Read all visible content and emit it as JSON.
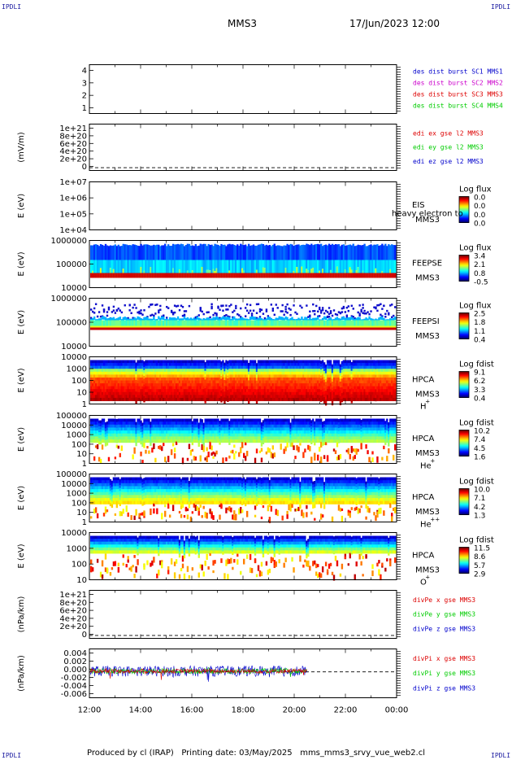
{
  "header": {
    "corner_tl": "IPDLI",
    "corner_tr": "IPDLI",
    "corner_bl": "IPDLI",
    "corner_br": "IPDLI",
    "spacecraft": "MMS3",
    "datetime": "17/Jun/2023 12:00"
  },
  "footer": {
    "produced": "Produced by cl (IRAP)",
    "printing_date": "Printing date: 03/May/2025",
    "script": "mms_mms3_srvy_vue_web2.cl"
  },
  "colors": {
    "blue": "#0000cc",
    "magenta": "#cc00cc",
    "red": "#dd0000",
    "green": "#00cc00"
  },
  "chart_data": [
    {
      "type": "line",
      "panel": "des-dist",
      "ylabel": "",
      "yticks": [
        "4",
        "3",
        "2",
        "1"
      ],
      "legend": [
        {
          "text": "des dist burst SC1 MMS1",
          "color": "#0000cc"
        },
        {
          "text": "des dist burst SC2 MMS2",
          "color": "#cc00cc"
        },
        {
          "text": "des dist burst SC3 MMS3",
          "color": "#dd0000"
        },
        {
          "text": "des dist burst SC4 MMS4",
          "color": "#00cc00"
        }
      ],
      "series": []
    },
    {
      "type": "line",
      "panel": "edi-e",
      "ylabel": "(mV/m)",
      "yticks": [
        "1e+21",
        "8e+20",
        "6e+20",
        "4e+20",
        "2e+20",
        "0"
      ],
      "legend": [
        {
          "text": "edi ex gse l2 MMS3",
          "color": "#dd0000"
        },
        {
          "text": "edi ey gse l2 MMS3",
          "color": "#00cc00"
        },
        {
          "text": "edi ez gse l2 MMS3",
          "color": "#0000cc"
        }
      ],
      "series": []
    },
    {
      "type": "heatmap",
      "panel": "eis",
      "ylabel": "E (eV)",
      "yticks": [
        "1e+07",
        "1e+06",
        "1e+05",
        "1e+04"
      ],
      "instrument": "EIS",
      "note": "heavy electron to",
      "sc": "MMS3",
      "cbar_title": "Log flux",
      "cbar_ticks": [
        "0.0",
        "0.0",
        "0.0",
        "0.0"
      ]
    },
    {
      "type": "heatmap",
      "panel": "feepse",
      "ylabel": "E (eV)",
      "yticks": [
        "1000000",
        "100000",
        "10000"
      ],
      "instrument": "FEEPSE",
      "sc": "MMS3",
      "cbar_title": "Log flux",
      "cbar_ticks": [
        "3.4",
        "2.1",
        "0.8",
        "-0.5"
      ]
    },
    {
      "type": "heatmap",
      "panel": "feepsi",
      "ylabel": "E (eV)",
      "yticks": [
        "1000000",
        "100000",
        "10000"
      ],
      "instrument": "FEEPSI",
      "sc": "MMS3",
      "cbar_title": "Log flux",
      "cbar_ticks": [
        "2.5",
        "1.8",
        "1.1",
        "0.4"
      ]
    },
    {
      "type": "heatmap",
      "panel": "hpca-h",
      "ylabel": "E (eV)",
      "yticks": [
        "10000",
        "1000",
        "100",
        "10",
        "1"
      ],
      "instrument": "HPCA",
      "sc": "MMS3",
      "species": "H",
      "charge": "+",
      "cbar_title": "Log fdist",
      "cbar_ticks": [
        "9.1",
        "6.2",
        "3.3",
        "0.4"
      ]
    },
    {
      "type": "heatmap",
      "panel": "hpca-he",
      "ylabel": "E (eV)",
      "yticks": [
        "100000",
        "10000",
        "1000",
        "100",
        "10",
        "1"
      ],
      "instrument": "HPCA",
      "sc": "MMS3",
      "species": "He",
      "charge": "+",
      "cbar_title": "Log fdist",
      "cbar_ticks": [
        "10.2",
        "7.4",
        "4.5",
        "1.6"
      ]
    },
    {
      "type": "heatmap",
      "panel": "hpca-hepp",
      "ylabel": "E (eV)",
      "yticks": [
        "100000",
        "10000",
        "1000",
        "100",
        "10",
        "1"
      ],
      "instrument": "HPCA",
      "sc": "MMS3",
      "species": "He",
      "charge": "++",
      "cbar_title": "Log fdist",
      "cbar_ticks": [
        "10.0",
        "7.1",
        "4.2",
        "1.3"
      ]
    },
    {
      "type": "heatmap",
      "panel": "hpca-o",
      "ylabel": "E (eV)",
      "yticks": [
        "10000",
        "1000",
        "100",
        "10"
      ],
      "instrument": "HPCA",
      "sc": "MMS3",
      "species": "O",
      "charge": "+",
      "cbar_title": "Log fdist",
      "cbar_ticks": [
        "11.5",
        "8.6",
        "5.7",
        "2.9"
      ]
    },
    {
      "type": "line",
      "panel": "divpe",
      "ylabel": "(nPa/km)",
      "yticks": [
        "1e+21",
        "8e+20",
        "6e+20",
        "4e+20",
        "2e+20",
        "0"
      ],
      "legend": [
        {
          "text": "divPe x gse MMS3",
          "color": "#dd0000"
        },
        {
          "text": "divPe y gse MMS3",
          "color": "#00cc00"
        },
        {
          "text": "divPe z gse MMS3",
          "color": "#0000cc"
        }
      ],
      "series": []
    },
    {
      "type": "line",
      "panel": "divpi",
      "ylabel": "(nPa/km)",
      "yticks": [
        "0.004",
        "0.002",
        "0.000",
        "-0.002",
        "-0.004",
        "-0.006"
      ],
      "ylim": [
        -0.006,
        0.005
      ],
      "legend": [
        {
          "text": "divPi x gse MMS3",
          "color": "#dd0000"
        },
        {
          "text": "divPi y gse MMS3",
          "color": "#00cc00"
        },
        {
          "text": "divPi z gse MMS3",
          "color": "#0000cc"
        }
      ],
      "xticks": [
        "12:00",
        "14:00",
        "16:00",
        "18:00",
        "20:00",
        "22:00",
        "00:00"
      ],
      "data_end_time": "20:30"
    }
  ]
}
